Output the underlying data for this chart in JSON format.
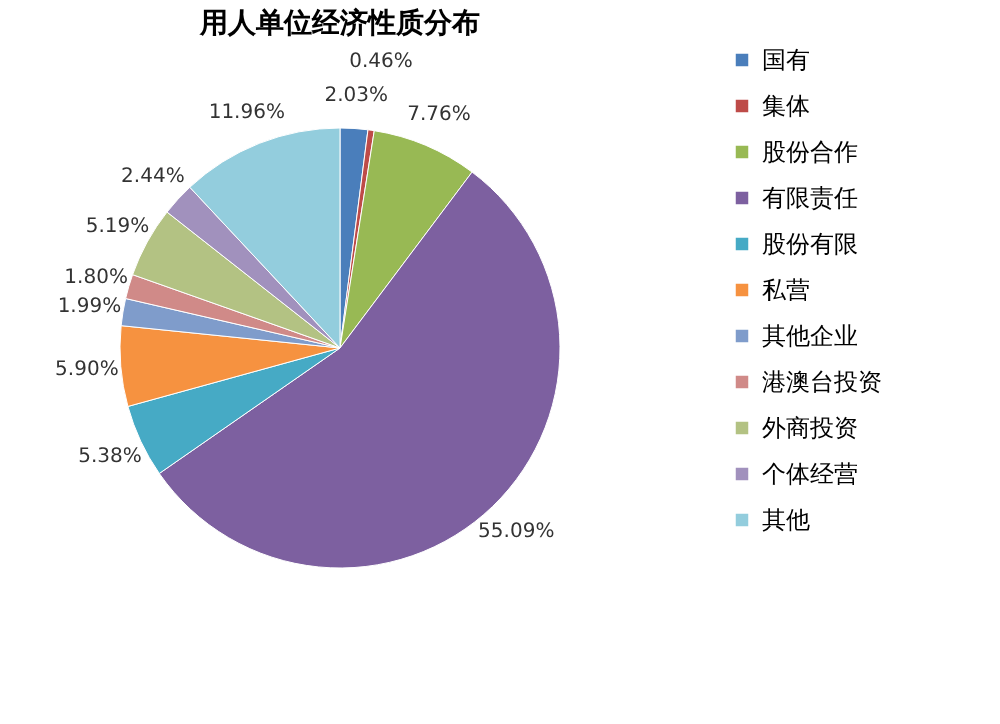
{
  "chart_data": {
    "type": "pie",
    "title": "用人单位经济性质分布",
    "categories": [
      "国有",
      "集体",
      "股份合作",
      "有限责任",
      "股份有限",
      "私营",
      "其他企业",
      "港澳台投资",
      "外商投资",
      "个体经营",
      "其他"
    ],
    "values": [
      2.03,
      0.46,
      7.76,
      55.09,
      5.38,
      5.9,
      1.99,
      1.8,
      5.19,
      2.44,
      11.96
    ],
    "value_labels": [
      "2.03%",
      "0.46%",
      "7.76%",
      "55.09%",
      "5.38%",
      "5.90%",
      "1.99%",
      "1.80%",
      "5.19%",
      "2.44%",
      "11.96%"
    ],
    "colors": [
      "#4a7ebb",
      "#be4b48",
      "#98b954",
      "#7d60a0",
      "#46aac5",
      "#f69240",
      "#7f9ccb",
      "#d08a88",
      "#b3c283",
      "#a191bd",
      "#93cddd"
    ],
    "legend": "right"
  }
}
